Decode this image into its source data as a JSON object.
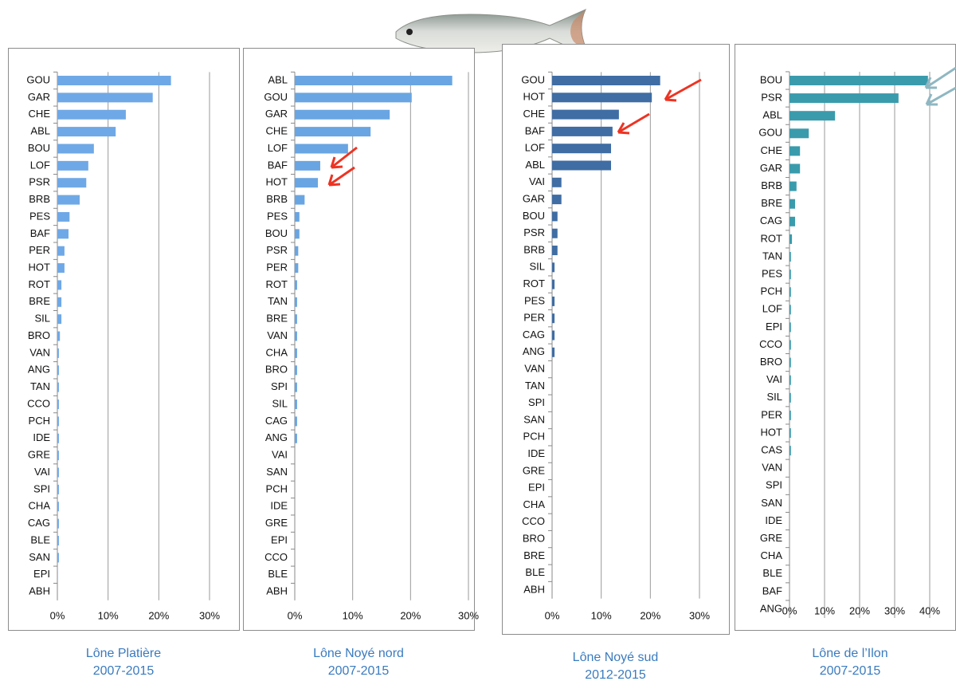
{
  "chart_data": [
    {
      "type": "bar",
      "orientation": "horizontal",
      "title": "Lône Platière",
      "subtitle": "2007-2015",
      "color": "#6fa8e6",
      "grid": true,
      "categories": [
        "GOU",
        "GAR",
        "CHE",
        "ABL",
        "BOU",
        "LOF",
        "PSR",
        "BRB",
        "PES",
        "BAF",
        "PER",
        "HOT",
        "ROT",
        "BRE",
        "SIL",
        "BRO",
        "VAN",
        "ANG",
        "TAN",
        "CCO",
        "PCH",
        "IDE",
        "GRE",
        "VAI",
        "SPI",
        "CHA",
        "CAG",
        "BLE",
        "SAN",
        "EPI",
        "ABH"
      ],
      "values": [
        22.4,
        18.8,
        13.5,
        11.5,
        7.2,
        6.1,
        5.7,
        4.4,
        2.4,
        2.2,
        1.4,
        1.4,
        0.8,
        0.8,
        0.8,
        0.5,
        0.3,
        0.3,
        0.3,
        0.3,
        0.3,
        0.3,
        0.3,
        0.3,
        0.3,
        0.3,
        0.3,
        0.3,
        0.3,
        0.1,
        0
      ],
      "xlim": [
        0,
        30
      ],
      "xticks": [
        {
          "value": 0,
          "label": "0%"
        },
        {
          "value": 10,
          "label": "10%"
        },
        {
          "value": 20,
          "label": "20%"
        },
        {
          "value": 30,
          "label": "30%"
        }
      ]
    },
    {
      "type": "bar",
      "orientation": "horizontal",
      "title": "Lône Noyé nord",
      "subtitle": "2007-2015",
      "color": "#69a5e2",
      "grid": true,
      "categories": [
        "ABL",
        "GOU",
        "GAR",
        "CHE",
        "LOF",
        "BAF",
        "HOT",
        "BRB",
        "PES",
        "BOU",
        "PSR",
        "PER",
        "ROT",
        "TAN",
        "BRE",
        "VAN",
        "CHA",
        "BRO",
        "SPI",
        "SIL",
        "CAG",
        "ANG",
        "VAI",
        "SAN",
        "PCH",
        "IDE",
        "GRE",
        "EPI",
        "CCO",
        "BLE",
        "ABH"
      ],
      "values": [
        27.2,
        20.2,
        16.4,
        13.1,
        9.2,
        4.4,
        4.0,
        1.7,
        0.8,
        0.8,
        0.6,
        0.6,
        0.4,
        0.4,
        0.4,
        0.4,
        0.4,
        0.4,
        0.4,
        0.4,
        0.4,
        0.4,
        0,
        0,
        0,
        0,
        0,
        0,
        0,
        0,
        0
      ],
      "xlim": [
        0,
        30
      ],
      "xticks": [
        {
          "value": 0,
          "label": "0%"
        },
        {
          "value": 10,
          "label": "10%"
        },
        {
          "value": 20,
          "label": "20%"
        },
        {
          "value": 30,
          "label": "30%"
        }
      ]
    },
    {
      "type": "bar",
      "orientation": "horizontal",
      "title": "Lône Noyé sud",
      "subtitle": "2012-2015",
      "color": "#3f6da4",
      "grid": true,
      "categories": [
        "GOU",
        "HOT",
        "CHE",
        "BAF",
        "LOF",
        "ABL",
        "VAI",
        "GAR",
        "BOU",
        "PSR",
        "BRB",
        "SIL",
        "ROT",
        "PES",
        "PER",
        "CAG",
        "ANG",
        "VAN",
        "TAN",
        "SPI",
        "SAN",
        "PCH",
        "IDE",
        "GRE",
        "EPI",
        "CHA",
        "CCO",
        "BRO",
        "BRE",
        "BLE",
        "ABH"
      ],
      "values": [
        22.0,
        20.3,
        13.6,
        12.3,
        12.0,
        12.0,
        1.9,
        1.9,
        1.1,
        1.1,
        1.1,
        0.5,
        0.5,
        0.5,
        0.5,
        0.5,
        0.5,
        0,
        0,
        0,
        0,
        0,
        0,
        0,
        0,
        0,
        0,
        0,
        0,
        0,
        0
      ],
      "xlim": [
        0,
        30
      ],
      "xticks": [
        {
          "value": 0,
          "label": "0%"
        },
        {
          "value": 10,
          "label": "10%"
        },
        {
          "value": 20,
          "label": "20%"
        },
        {
          "value": 30,
          "label": "30%"
        }
      ]
    },
    {
      "type": "bar",
      "orientation": "horizontal",
      "title": "Lône de l’Ilon",
      "subtitle": "2007-2015",
      "color": "#3a9bac",
      "grid": true,
      "categories": [
        "BOU",
        "PSR",
        "ABL",
        "GOU",
        "CHE",
        "GAR",
        "BRB",
        "BRE",
        "CAG",
        "ROT",
        "TAN",
        "PES",
        "PCH",
        "LOF",
        "EPI",
        "CCO",
        "BRO",
        "VAI",
        "SIL",
        "PER",
        "HOT",
        "CAS",
        "VAN",
        "SPI",
        "SAN",
        "IDE",
        "GRE",
        "CHA",
        "BLE",
        "BAF",
        "ANG"
      ],
      "values": [
        39.5,
        31.1,
        13.0,
        5.5,
        3.0,
        3.0,
        2.0,
        1.6,
        1.6,
        0.7,
        0.4,
        0.4,
        0.4,
        0.4,
        0.4,
        0.4,
        0.4,
        0.4,
        0.4,
        0.4,
        0.4,
        0.4,
        0,
        0,
        0,
        0,
        0,
        0,
        0,
        0,
        0
      ],
      "xlim": [
        0,
        40
      ],
      "xticks": [
        {
          "value": 0,
          "label": "0%"
        },
        {
          "value": 10,
          "label": "10%"
        },
        {
          "value": 20,
          "label": "20%"
        },
        {
          "value": 30,
          "label": "30%"
        },
        {
          "value": 40,
          "label": "40%"
        }
      ]
    }
  ]
}
